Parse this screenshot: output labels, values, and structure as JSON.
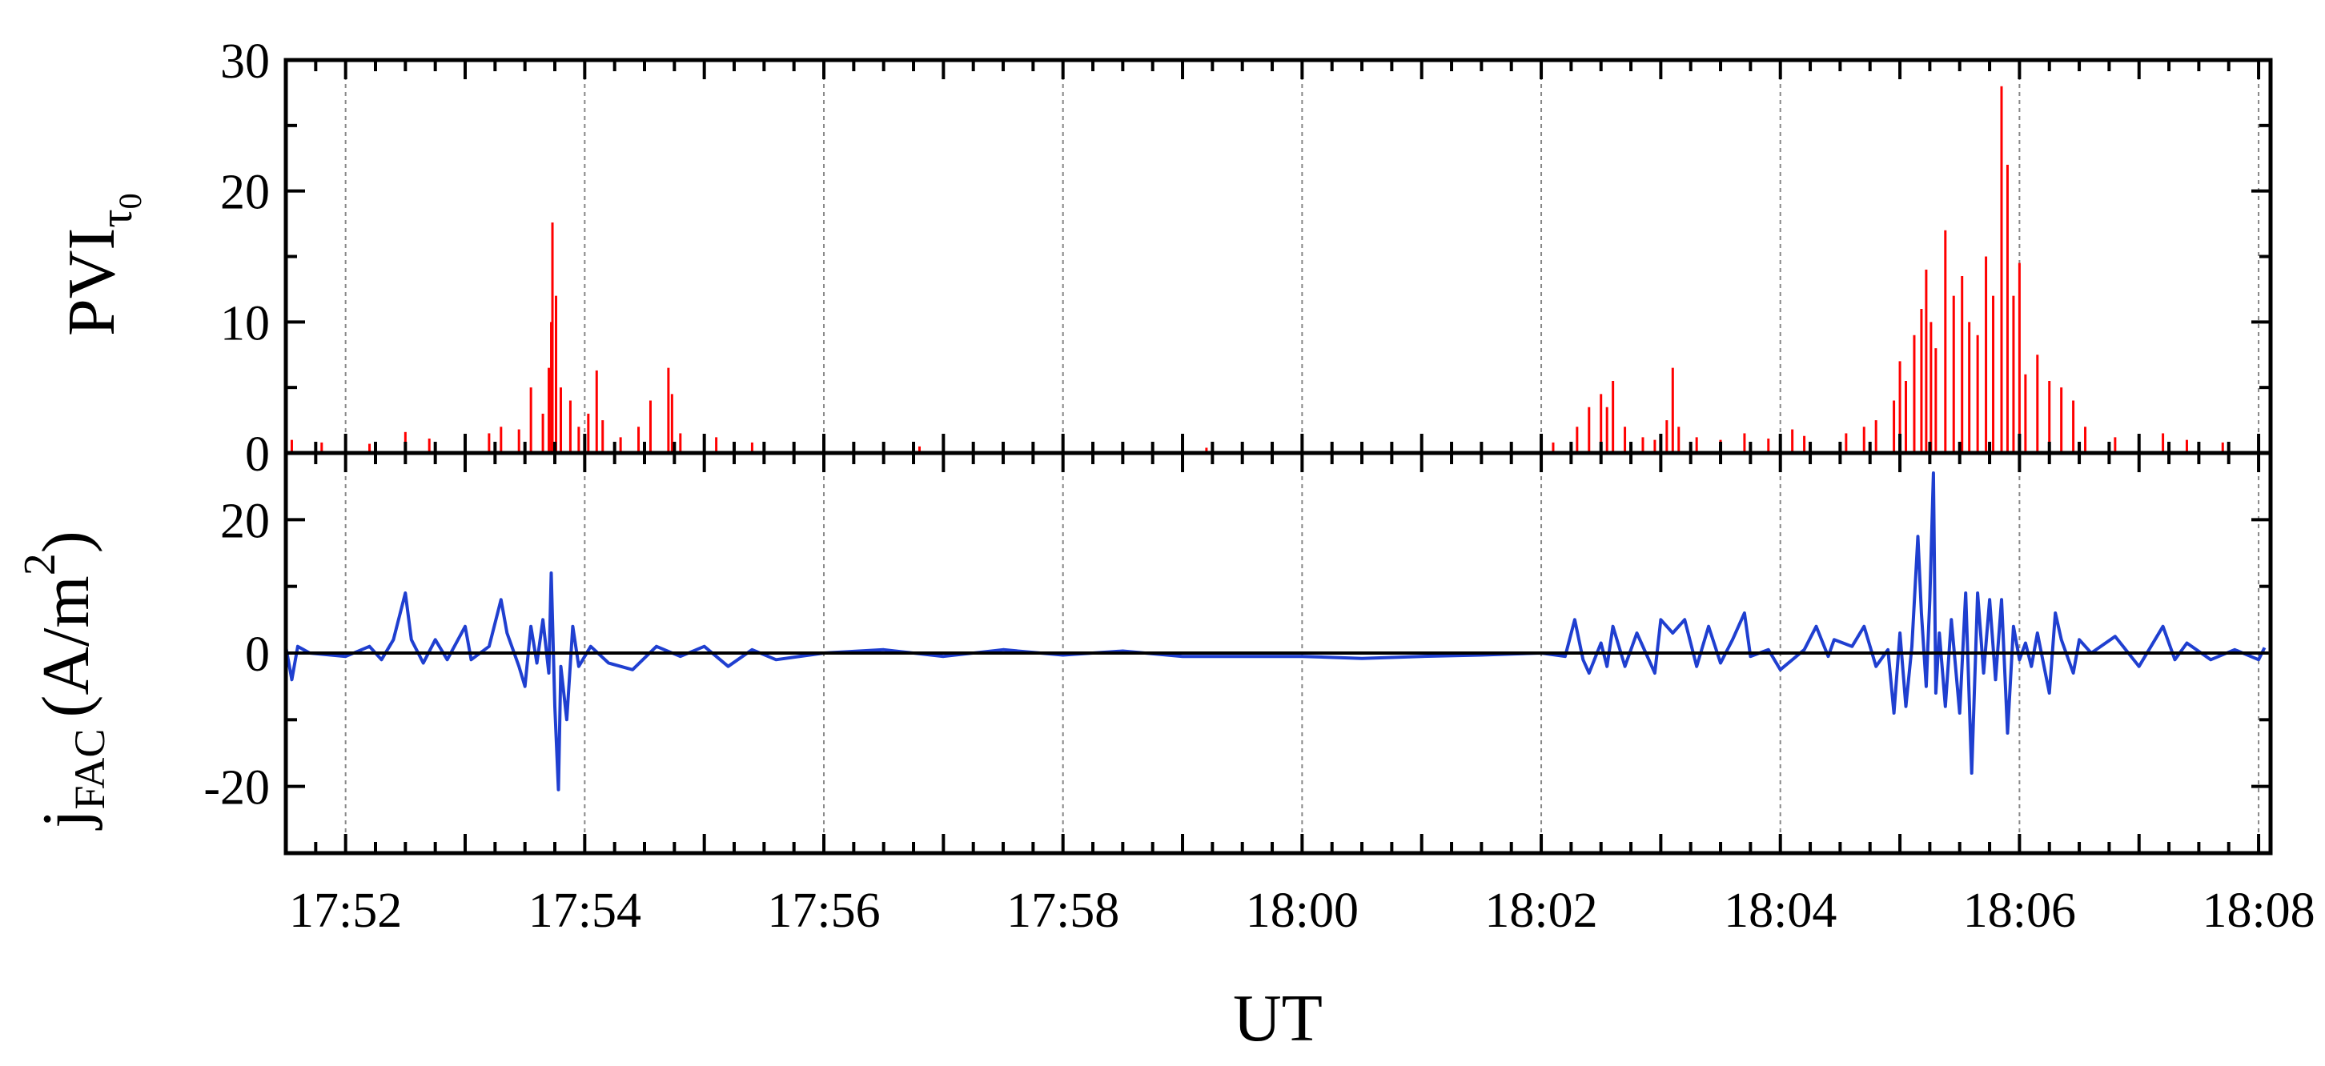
{
  "chart_data": {
    "type": "line",
    "x_axis": {
      "label": "UT",
      "ticks": [
        "17:52",
        "17:54",
        "17:56",
        "17:58",
        "18:00",
        "18:02",
        "18:04",
        "18:06",
        "18:08"
      ],
      "tick_minutes": [
        -8,
        -6,
        -4,
        -2,
        0,
        2,
        4,
        6,
        8
      ],
      "range_minutes": [
        -8.5,
        8.1
      ],
      "grid": true
    },
    "panels": [
      {
        "id": "pvi",
        "ylabel_main": "PVI",
        "ylabel_sub": "τ",
        "ylabel_subsub": "0",
        "ylim": [
          0,
          30
        ],
        "yticks": [
          "0",
          "10",
          "20",
          "30"
        ],
        "ytick_values": [
          0,
          10,
          20,
          30
        ],
        "series": [
          {
            "style": "spike",
            "color": "#ff0000",
            "points": [
              [
                -8.45,
                1.0
              ],
              [
                -8.2,
                0.8
              ],
              [
                -7.8,
                0.7
              ],
              [
                -7.5,
                1.6
              ],
              [
                -7.3,
                1.1
              ],
              [
                -7.0,
                1.2
              ],
              [
                -6.8,
                1.5
              ],
              [
                -6.7,
                2.0
              ],
              [
                -6.55,
                1.8
              ],
              [
                -6.45,
                5.0
              ],
              [
                -6.35,
                3.0
              ],
              [
                -6.3,
                6.5
              ],
              [
                -6.28,
                10.0
              ],
              [
                -6.27,
                17.6
              ],
              [
                -6.24,
                12.0
              ],
              [
                -6.2,
                5.0
              ],
              [
                -6.12,
                4.0
              ],
              [
                -6.05,
                2.0
              ],
              [
                -5.97,
                3.0
              ],
              [
                -5.9,
                6.3
              ],
              [
                -5.85,
                2.5
              ],
              [
                -5.7,
                1.2
              ],
              [
                -5.55,
                2.0
              ],
              [
                -5.45,
                4.0
              ],
              [
                -5.3,
                6.5
              ],
              [
                -5.27,
                4.5
              ],
              [
                -5.2,
                1.5
              ],
              [
                -4.9,
                1.2
              ],
              [
                -4.6,
                0.8
              ],
              [
                -3.2,
                0.5
              ],
              [
                -0.8,
                0.4
              ],
              [
                2.1,
                0.8
              ],
              [
                2.3,
                2.0
              ],
              [
                2.4,
                3.5
              ],
              [
                2.5,
                4.5
              ],
              [
                2.55,
                3.5
              ],
              [
                2.6,
                5.5
              ],
              [
                2.7,
                2.0
              ],
              [
                2.85,
                1.2
              ],
              [
                2.95,
                1.0
              ],
              [
                3.05,
                2.5
              ],
              [
                3.1,
                6.5
              ],
              [
                3.15,
                2.0
              ],
              [
                3.3,
                1.2
              ],
              [
                3.5,
                1.0
              ],
              [
                3.7,
                1.5
              ],
              [
                3.9,
                1.1
              ],
              [
                4.1,
                1.8
              ],
              [
                4.2,
                1.3
              ],
              [
                4.55,
                1.5
              ],
              [
                4.7,
                2.0
              ],
              [
                4.8,
                2.5
              ],
              [
                4.95,
                4.0
              ],
              [
                5.0,
                7.0
              ],
              [
                5.05,
                5.5
              ],
              [
                5.12,
                9.0
              ],
              [
                5.18,
                11.0
              ],
              [
                5.22,
                14.0
              ],
              [
                5.26,
                10.0
              ],
              [
                5.3,
                8.0
              ],
              [
                5.38,
                17.0
              ],
              [
                5.45,
                12.0
              ],
              [
                5.52,
                13.5
              ],
              [
                5.58,
                10.0
              ],
              [
                5.65,
                9.0
              ],
              [
                5.72,
                15.0
              ],
              [
                5.78,
                12.0
              ],
              [
                5.85,
                28.0
              ],
              [
                5.9,
                22.0
              ],
              [
                5.95,
                12.0
              ],
              [
                6.0,
                14.5
              ],
              [
                6.05,
                6.0
              ],
              [
                6.15,
                7.5
              ],
              [
                6.25,
                5.5
              ],
              [
                6.35,
                5.0
              ],
              [
                6.45,
                4.0
              ],
              [
                6.55,
                2.0
              ],
              [
                6.8,
                1.2
              ],
              [
                7.0,
                1.3
              ],
              [
                7.2,
                1.5
              ],
              [
                7.4,
                1.0
              ],
              [
                7.7,
                0.8
              ],
              [
                8.0,
                0.6
              ]
            ]
          }
        ]
      },
      {
        "id": "jfac",
        "ylabel_main": "j",
        "ylabel_sub": "FAC",
        "ylabel_unit": "(A/m",
        "ylabel_exp": "2",
        "ylabel_close": ")",
        "ylim": [
          -30,
          30
        ],
        "yticks": [
          "-20",
          "0",
          "20"
        ],
        "ytick_values": [
          -20,
          0,
          20
        ],
        "zero_line": true,
        "series": [
          {
            "style": "line",
            "color": "#1f3fd0",
            "points": [
              [
                -8.5,
                1.0
              ],
              [
                -8.45,
                -4.0
              ],
              [
                -8.4,
                1.0
              ],
              [
                -8.3,
                0.0
              ],
              [
                -8.0,
                -0.5
              ],
              [
                -7.8,
                1.0
              ],
              [
                -7.7,
                -1.0
              ],
              [
                -7.6,
                2.0
              ],
              [
                -7.5,
                9.0
              ],
              [
                -7.45,
                2.0
              ],
              [
                -7.35,
                -1.5
              ],
              [
                -7.25,
                2.0
              ],
              [
                -7.15,
                -1.0
              ],
              [
                -7.0,
                4.0
              ],
              [
                -6.95,
                -1.0
              ],
              [
                -6.8,
                1.0
              ],
              [
                -6.7,
                8.0
              ],
              [
                -6.65,
                3.0
              ],
              [
                -6.55,
                -2.0
              ],
              [
                -6.5,
                -5.0
              ],
              [
                -6.45,
                4.0
              ],
              [
                -6.4,
                -1.5
              ],
              [
                -6.35,
                5.0
              ],
              [
                -6.3,
                -3.0
              ],
              [
                -6.28,
                12.0
              ],
              [
                -6.25,
                -8.0
              ],
              [
                -6.22,
                -20.5
              ],
              [
                -6.2,
                -2.0
              ],
              [
                -6.15,
                -10.0
              ],
              [
                -6.1,
                4.0
              ],
              [
                -6.05,
                -2.0
              ],
              [
                -5.95,
                1.0
              ],
              [
                -5.8,
                -1.5
              ],
              [
                -5.6,
                -2.5
              ],
              [
                -5.4,
                1.0
              ],
              [
                -5.2,
                -0.5
              ],
              [
                -5.0,
                1.0
              ],
              [
                -4.9,
                -0.5
              ],
              [
                -4.8,
                -2.0
              ],
              [
                -4.6,
                0.5
              ],
              [
                -4.4,
                -1.0
              ],
              [
                -4.0,
                0.0
              ],
              [
                -3.5,
                0.5
              ],
              [
                -3.0,
                -0.5
              ],
              [
                -2.5,
                0.5
              ],
              [
                -2.0,
                -0.3
              ],
              [
                -1.5,
                0.3
              ],
              [
                -1.0,
                -0.5
              ],
              [
                -0.5,
                -0.5
              ],
              [
                0.0,
                -0.5
              ],
              [
                0.5,
                -0.8
              ],
              [
                1.0,
                -0.5
              ],
              [
                1.5,
                -0.3
              ],
              [
                2.0,
                0.0
              ],
              [
                2.2,
                -0.5
              ],
              [
                2.28,
                5.0
              ],
              [
                2.35,
                -1.0
              ],
              [
                2.4,
                -3.0
              ],
              [
                2.5,
                1.5
              ],
              [
                2.55,
                -2.0
              ],
              [
                2.6,
                4.0
              ],
              [
                2.7,
                -2.0
              ],
              [
                2.8,
                3.0
              ],
              [
                2.95,
                -3.0
              ],
              [
                3.0,
                5.0
              ],
              [
                3.1,
                3.0
              ],
              [
                3.2,
                5.0
              ],
              [
                3.3,
                -2.0
              ],
              [
                3.4,
                4.0
              ],
              [
                3.5,
                -1.5
              ],
              [
                3.6,
                2.0
              ],
              [
                3.7,
                6.0
              ],
              [
                3.75,
                -0.5
              ],
              [
                3.9,
                0.5
              ],
              [
                4.0,
                -2.5
              ],
              [
                4.1,
                -1.0
              ],
              [
                4.2,
                0.5
              ],
              [
                4.3,
                4.0
              ],
              [
                4.4,
                -0.5
              ],
              [
                4.45,
                2.0
              ],
              [
                4.6,
                1.0
              ],
              [
                4.7,
                4.0
              ],
              [
                4.8,
                -2.0
              ],
              [
                4.9,
                0.5
              ],
              [
                4.95,
                -9.0
              ],
              [
                5.0,
                3.0
              ],
              [
                5.05,
                -8.0
              ],
              [
                5.1,
                1.0
              ],
              [
                5.15,
                17.5
              ],
              [
                5.18,
                6.0
              ],
              [
                5.22,
                -5.0
              ],
              [
                5.25,
                8.0
              ],
              [
                5.28,
                27.0
              ],
              [
                5.3,
                -6.0
              ],
              [
                5.33,
                3.0
              ],
              [
                5.38,
                -8.0
              ],
              [
                5.43,
                5.0
              ],
              [
                5.5,
                -9.0
              ],
              [
                5.55,
                9.0
              ],
              [
                5.6,
                -18.0
              ],
              [
                5.65,
                9.0
              ],
              [
                5.7,
                -3.0
              ],
              [
                5.75,
                8.0
              ],
              [
                5.8,
                -4.0
              ],
              [
                5.85,
                8.0
              ],
              [
                5.9,
                -12.0
              ],
              [
                5.95,
                4.0
              ],
              [
                6.0,
                -1.0
              ],
              [
                6.05,
                1.5
              ],
              [
                6.1,
                -2.0
              ],
              [
                6.15,
                3.0
              ],
              [
                6.25,
                -6.0
              ],
              [
                6.3,
                6.0
              ],
              [
                6.35,
                2.0
              ],
              [
                6.45,
                -3.0
              ],
              [
                6.5,
                2.0
              ],
              [
                6.6,
                0.0
              ],
              [
                6.8,
                2.5
              ],
              [
                7.0,
                -2.0
              ],
              [
                7.2,
                4.0
              ],
              [
                7.3,
                -1.0
              ],
              [
                7.4,
                1.5
              ],
              [
                7.6,
                -1.0
              ],
              [
                7.8,
                0.5
              ],
              [
                8.0,
                -1.0
              ],
              [
                8.05,
                0.8
              ]
            ]
          }
        ]
      }
    ]
  }
}
